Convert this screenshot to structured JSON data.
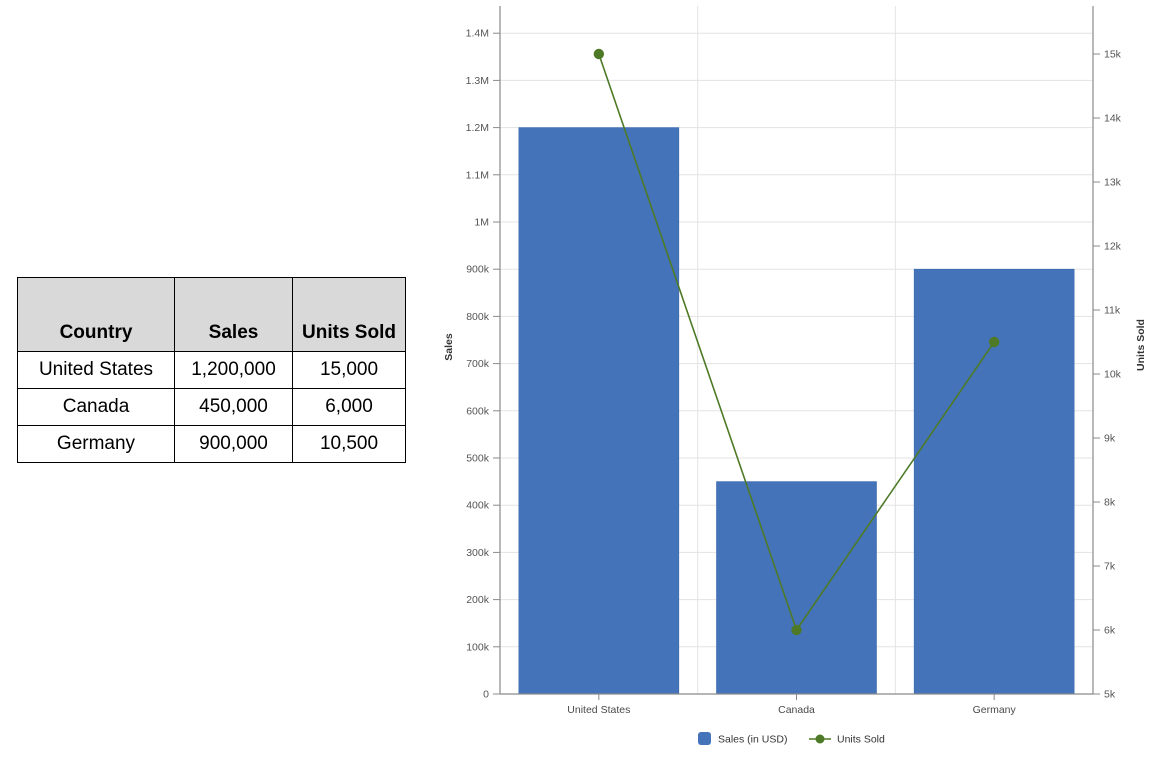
{
  "table": {
    "headers": [
      "Country",
      "Sales",
      "Units Sold"
    ],
    "rows": [
      [
        "United States",
        "1,200,000",
        "15,000"
      ],
      [
        "Canada",
        "450,000",
        "6,000"
      ],
      [
        "Germany",
        "900,000",
        "10,500"
      ]
    ]
  },
  "chart_data": {
    "type": "bar",
    "subtype": "combo-bar-line-dual-axis",
    "categories": [
      "United States",
      "Canada",
      "Germany"
    ],
    "series": [
      {
        "name": "Sales (in USD)",
        "type": "bar",
        "axis": "left",
        "color": "#4473B9",
        "values": [
          1200000,
          450000,
          900000
        ]
      },
      {
        "name": "Units Sold",
        "type": "line",
        "axis": "right",
        "color": "#4E7A27",
        "values": [
          15000,
          6000,
          10500
        ]
      }
    ],
    "title": "",
    "xlabel": "",
    "left_axis": {
      "label": "Sales",
      "min": 0,
      "max": 1400000,
      "tick_step": 100000,
      "tick_labels": [
        "0",
        "100k",
        "200k",
        "300k",
        "400k",
        "500k",
        "600k",
        "700k",
        "800k",
        "900k",
        "1M",
        "1.1M",
        "1.2M",
        "1.3M",
        "1.4M"
      ]
    },
    "right_axis": {
      "label": "Units Sold",
      "min": 5000,
      "max": 15000,
      "tick_step": 1000,
      "tick_labels": [
        "5k",
        "6k",
        "7k",
        "8k",
        "9k",
        "10k",
        "11k",
        "12k",
        "13k",
        "14k",
        "15k"
      ]
    },
    "grid": true,
    "legend_position": "bottom",
    "legend": [
      {
        "label": "Sales (in USD)",
        "marker": "square",
        "color": "#4473B9"
      },
      {
        "label": "Units Sold",
        "marker": "line-dot",
        "color": "#4E7A27"
      }
    ]
  },
  "colors": {
    "bar": "#4473B9",
    "bar_edge": "#3A69AE",
    "line": "#4E7A27",
    "grid": "#e3e3e3",
    "axis": "#8a8a8a",
    "tick_text": "#555555",
    "axis_title": "#333333",
    "legend_text": "#333333",
    "table_header_bg": "#d9d9d9",
    "table_border": "#000000"
  }
}
